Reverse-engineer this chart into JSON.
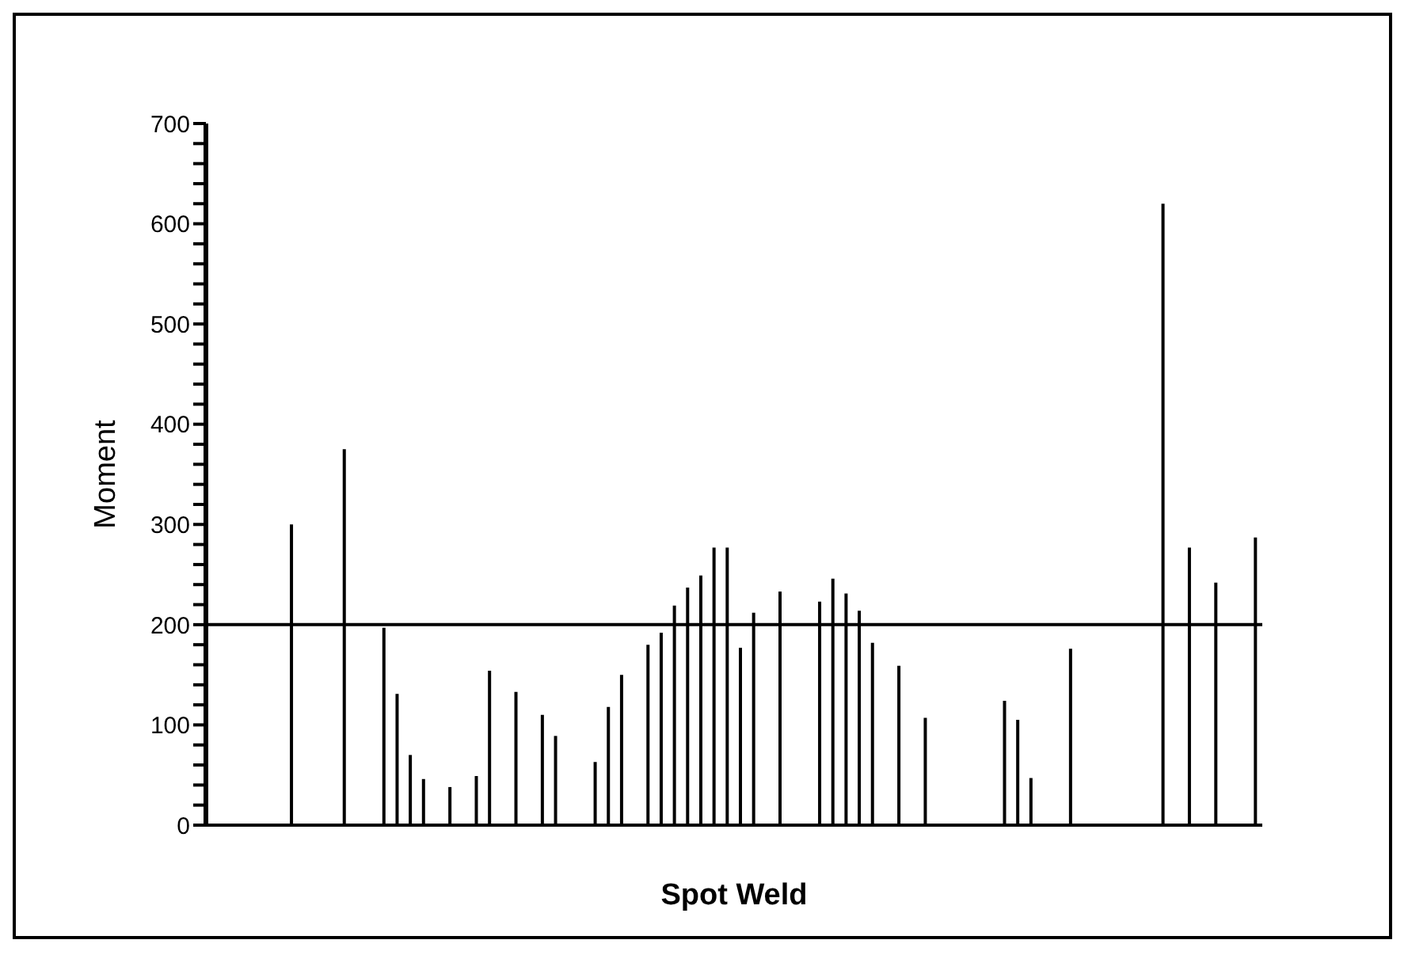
{
  "chart_data": {
    "type": "bar",
    "xlabel": "Spot Weld",
    "ylabel": "Moment",
    "categories": [
      null,
      null,
      null,
      null,
      null,
      null,
      null,
      null,
      null,
      null,
      null,
      null,
      null,
      null,
      null,
      null,
      null,
      null,
      null,
      null,
      null,
      null,
      null,
      null,
      null,
      null,
      null,
      null,
      null,
      null,
      null,
      null,
      null,
      null,
      null,
      null,
      null,
      null,
      null,
      null,
      null,
      null,
      null,
      null,
      null,
      null,
      null,
      null,
      null,
      null,
      null,
      null,
      null,
      null,
      null,
      null,
      null,
      null,
      null,
      null,
      null,
      null,
      null,
      null,
      null,
      null,
      null,
      null,
      null,
      null,
      null,
      null,
      null,
      null,
      null,
      null,
      null,
      null,
      null,
      null
    ],
    "values": [
      0,
      0,
      0,
      0,
      0,
      0,
      300,
      0,
      0,
      0,
      375,
      0,
      0,
      197,
      131,
      70,
      46,
      0,
      38,
      0,
      49,
      154,
      0,
      133,
      0,
      110,
      89,
      0,
      0,
      63,
      118,
      150,
      0,
      180,
      192,
      219,
      237,
      249,
      277,
      277,
      177,
      212,
      0,
      233,
      0,
      0,
      223,
      246,
      231,
      214,
      182,
      0,
      159,
      0,
      107,
      0,
      0,
      0,
      0,
      0,
      124,
      105,
      47,
      0,
      0,
      176,
      0,
      0,
      0,
      0,
      0,
      0,
      620,
      0,
      277,
      0,
      242,
      0,
      0,
      287
    ],
    "color": "#000000",
    "ylim": [
      0,
      700
    ],
    "yticks": [
      0,
      {
        "value": 20,
        "label": null
      },
      {
        "value": 40,
        "label": null
      },
      {
        "value": 60,
        "label": null
      },
      {
        "value": 80,
        "label": null
      },
      100,
      {
        "value": 120,
        "label": null
      },
      {
        "value": 140,
        "label": null
      },
      {
        "value": 160,
        "label": null
      },
      {
        "value": 180,
        "label": null
      },
      200,
      {
        "value": 220,
        "label": null
      },
      {
        "value": 240,
        "label": null
      },
      {
        "value": 260,
        "label": null
      },
      {
        "value": 280,
        "label": null
      },
      300,
      {
        "value": 320,
        "label": null
      },
      {
        "value": 340,
        "label": null
      },
      {
        "value": 360,
        "label": null
      },
      {
        "value": 380,
        "label": null
      },
      400,
      {
        "value": 420,
        "label": null
      },
      {
        "value": 440,
        "label": null
      },
      {
        "value": 460,
        "label": null
      },
      {
        "value": 480,
        "label": null
      },
      500,
      {
        "value": 520,
        "label": null
      },
      {
        "value": 540,
        "label": null
      },
      {
        "value": 560,
        "label": null
      },
      {
        "value": 580,
        "label": null
      },
      600,
      {
        "value": 620,
        "label": null
      },
      {
        "value": 640,
        "label": null
      },
      {
        "value": 660,
        "label": null
      },
      {
        "value": 680,
        "label": null
      },
      700
    ],
    "ref_lines": [
      {
        "axis": "y",
        "value": 200,
        "color": "#000000"
      }
    ],
    "grid": false,
    "legend": false
  }
}
